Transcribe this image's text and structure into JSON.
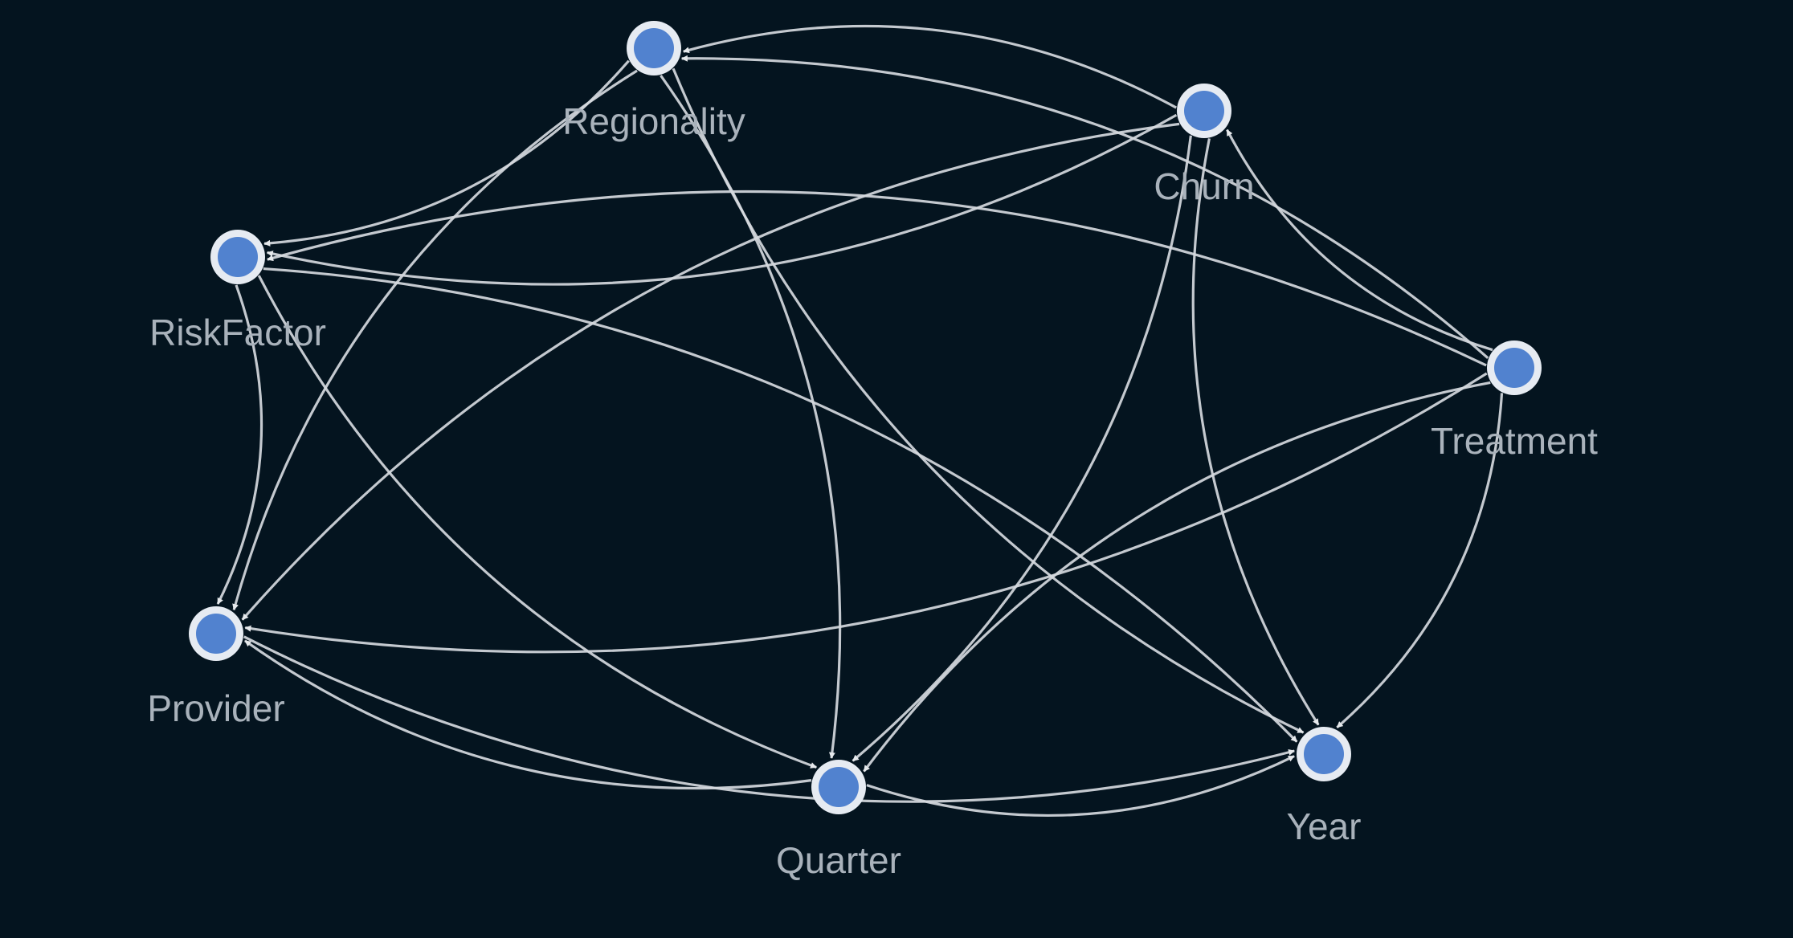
{
  "graph": {
    "colors": {
      "background": "#04141f",
      "edge": "#d5d9de",
      "node_fill": "#5182cf",
      "node_ring": "#e6ebf2",
      "label": "#a9b2bb"
    },
    "nodes": [
      {
        "id": "regionality",
        "label": "Regionality"
      },
      {
        "id": "churn",
        "label": "Churn"
      },
      {
        "id": "riskfactor",
        "label": "RiskFactor"
      },
      {
        "id": "treatment",
        "label": "Treatment"
      },
      {
        "id": "provider",
        "label": "Provider"
      },
      {
        "id": "quarter",
        "label": "Quarter"
      },
      {
        "id": "year",
        "label": "Year"
      }
    ],
    "edges": [
      {
        "source": "treatment",
        "target": "regionality"
      },
      {
        "source": "treatment",
        "target": "churn"
      },
      {
        "source": "treatment",
        "target": "riskfactor"
      },
      {
        "source": "treatment",
        "target": "provider"
      },
      {
        "source": "treatment",
        "target": "quarter"
      },
      {
        "source": "treatment",
        "target": "year"
      },
      {
        "source": "churn",
        "target": "regionality"
      },
      {
        "source": "churn",
        "target": "riskfactor"
      },
      {
        "source": "churn",
        "target": "provider"
      },
      {
        "source": "churn",
        "target": "quarter"
      },
      {
        "source": "churn",
        "target": "year"
      },
      {
        "source": "regionality",
        "target": "riskfactor"
      },
      {
        "source": "regionality",
        "target": "provider"
      },
      {
        "source": "regionality",
        "target": "quarter"
      },
      {
        "source": "regionality",
        "target": "year"
      },
      {
        "source": "riskfactor",
        "target": "provider"
      },
      {
        "source": "riskfactor",
        "target": "quarter"
      },
      {
        "source": "riskfactor",
        "target": "year"
      },
      {
        "source": "provider",
        "target": "year"
      },
      {
        "source": "quarter",
        "target": "provider"
      },
      {
        "source": "quarter",
        "target": "year"
      }
    ]
  }
}
